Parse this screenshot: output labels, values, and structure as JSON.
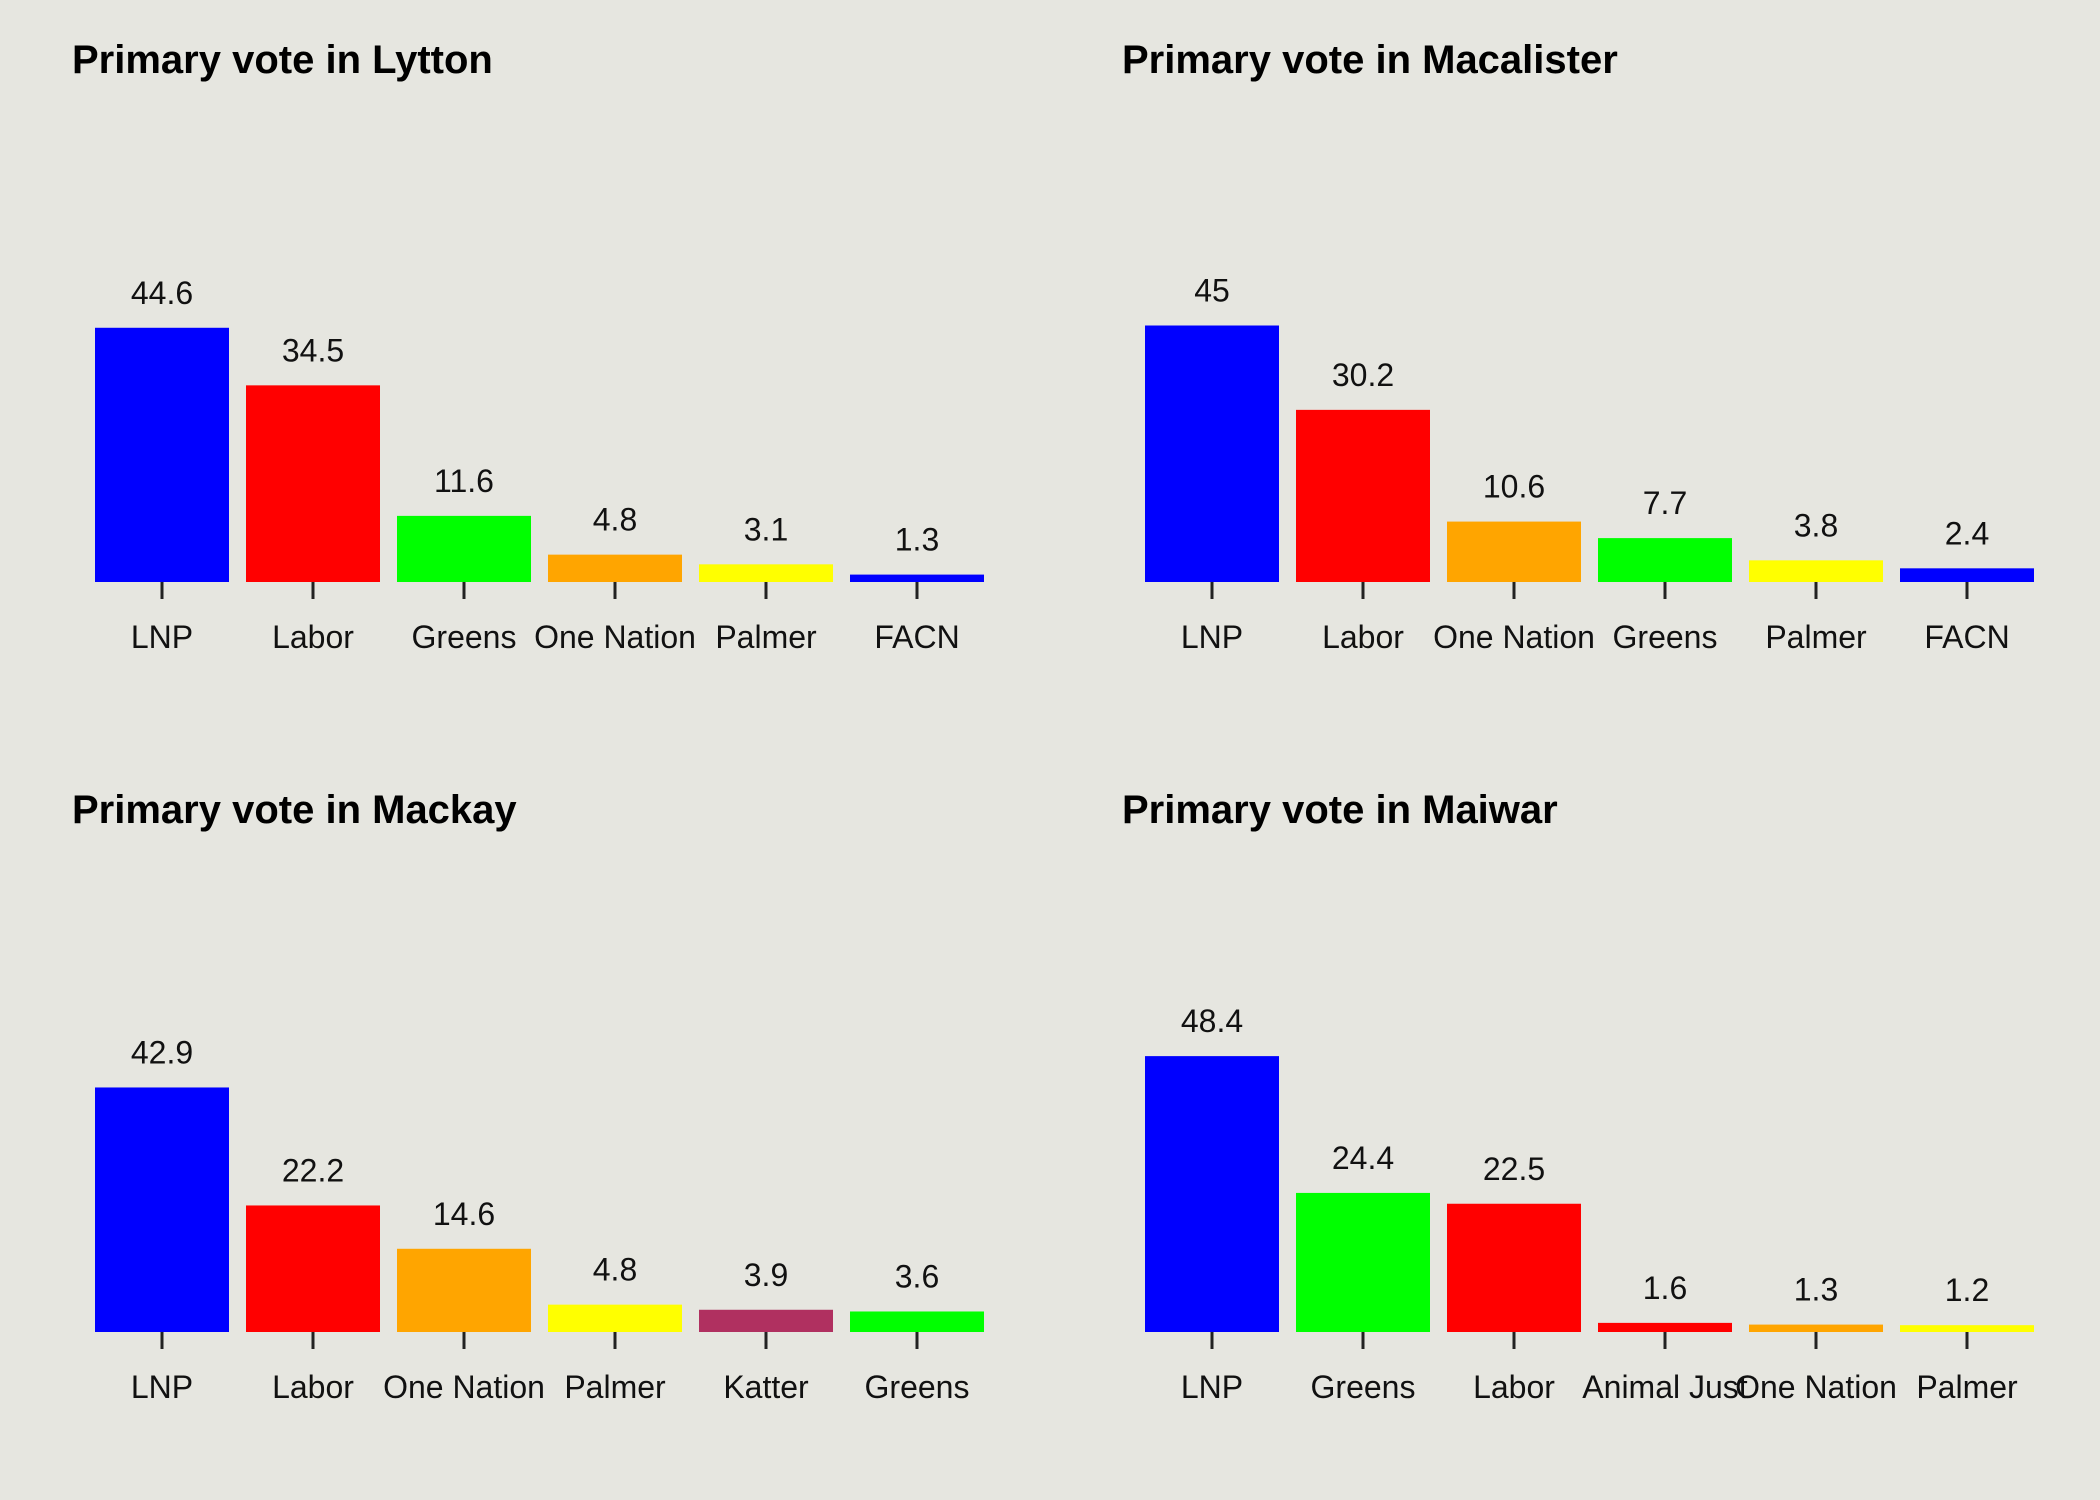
{
  "chart_data": [
    {
      "type": "bar",
      "title": "Primary vote in Lytton",
      "categories": [
        "LNP",
        "Labor",
        "Greens",
        "One Nation",
        "Palmer",
        "FACN"
      ],
      "values": [
        44.6,
        34.5,
        11.6,
        4.8,
        3.1,
        1.3
      ],
      "colors": [
        "#0000ff",
        "#ff0000",
        "#00ff00",
        "#ffa500",
        "#ffff00",
        "#0000ff"
      ],
      "ylim": [
        0,
        60
      ],
      "grid": false,
      "legend": "none"
    },
    {
      "type": "bar",
      "title": "Primary vote in Macalister",
      "categories": [
        "LNP",
        "Labor",
        "One Nation",
        "Greens",
        "Palmer",
        "FACN"
      ],
      "values": [
        45,
        30.2,
        10.6,
        7.7,
        3.8,
        2.4
      ],
      "colors": [
        "#0000ff",
        "#ff0000",
        "#ffa500",
        "#00ff00",
        "#ffff00",
        "#0000ff"
      ],
      "ylim": [
        0,
        60
      ],
      "grid": false,
      "legend": "none"
    },
    {
      "type": "bar",
      "title": "Primary vote in Mackay",
      "categories": [
        "LNP",
        "Labor",
        "One Nation",
        "Palmer",
        "Katter",
        "Greens"
      ],
      "values": [
        42.9,
        22.2,
        14.6,
        4.8,
        3.9,
        3.6
      ],
      "colors": [
        "#0000ff",
        "#ff0000",
        "#ffa500",
        "#ffff00",
        "#b03060",
        "#00ff00"
      ],
      "ylim": [
        0,
        60
      ],
      "grid": false,
      "legend": "none"
    },
    {
      "type": "bar",
      "title": "Primary vote in Maiwar",
      "categories": [
        "LNP",
        "Greens",
        "Labor",
        "Animal Just",
        "One Nation",
        "Palmer"
      ],
      "values": [
        48.4,
        24.4,
        22.5,
        1.6,
        1.3,
        1.2
      ],
      "colors": [
        "#0000ff",
        "#00ff00",
        "#ff0000",
        "#ff0000",
        "#ffa500",
        "#ffff00"
      ],
      "ylim": [
        0,
        60
      ],
      "grid": false,
      "legend": "none"
    }
  ]
}
